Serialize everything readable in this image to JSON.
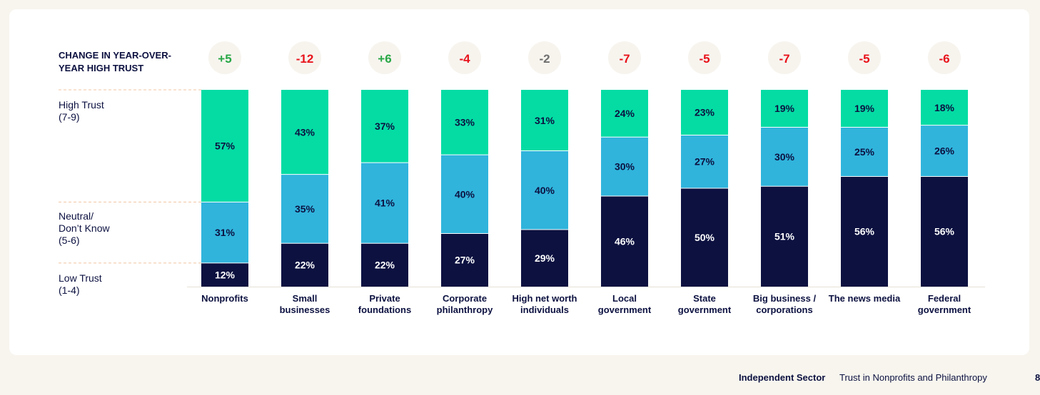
{
  "colors": {
    "high": "#04dca4",
    "neutral": "#30b4dc",
    "low": "#0c1140",
    "positive": "#28a745",
    "negative": "#e8131b",
    "neutral_change": "#6f6f6f",
    "circle": "#f7f4ee",
    "guide": "#f0c4a0"
  },
  "chart_data": {
    "type": "bar",
    "stacked": true,
    "change_title": [
      "CHANGE IN YEAR-OVER-",
      "YEAR HIGH TRUST"
    ],
    "categories": [
      [
        "Nonprofits"
      ],
      [
        "Small",
        "businesses"
      ],
      [
        "Private",
        "foundations"
      ],
      [
        "Corporate",
        "philanthropy"
      ],
      [
        "High net worth",
        "individuals"
      ],
      [
        "Local",
        "government"
      ],
      [
        "State",
        "government"
      ],
      [
        "Big business /",
        "corporations"
      ],
      [
        "The news media"
      ],
      [
        "Federal",
        "government"
      ]
    ],
    "changes": [
      "+5",
      "-12",
      "+6",
      "-4",
      "-2",
      "-7",
      "-5",
      "-7",
      "-5",
      "-6"
    ],
    "series": [
      {
        "name": "Low Trust",
        "range": "(1-4)",
        "values": [
          12,
          22,
          22,
          27,
          29,
          46,
          50,
          51,
          56,
          56
        ],
        "labels": [
          "12%",
          "22%",
          "22%",
          "27%",
          "29%",
          "46%",
          "50%",
          "51%",
          "56%",
          "56%"
        ]
      },
      {
        "name": "Neutral/ Don't Know",
        "label_lines": [
          "Neutral/",
          "Don’t Know"
        ],
        "range": "(5-6)",
        "values": [
          31,
          35,
          41,
          40,
          40,
          30,
          27,
          30,
          25,
          26
        ],
        "labels": [
          "31%",
          "35%",
          "41%",
          "40%",
          "40%",
          "30%",
          "27%",
          "30%",
          "25%",
          "26%"
        ]
      },
      {
        "name": "High Trust",
        "range": "(7-9)",
        "values": [
          57,
          43,
          37,
          33,
          31,
          24,
          23,
          19,
          19,
          18
        ],
        "labels": [
          "57%",
          "43%",
          "37%",
          "33%",
          "31%",
          "24%",
          "23%",
          "19%",
          "19%",
          "18%"
        ]
      }
    ],
    "ylim": [
      0,
      100
    ],
    "grid": false
  },
  "footer": {
    "brand": "Independent Sector",
    "publication": "Trust in Nonprofits and Philanthropy",
    "page": "8"
  }
}
